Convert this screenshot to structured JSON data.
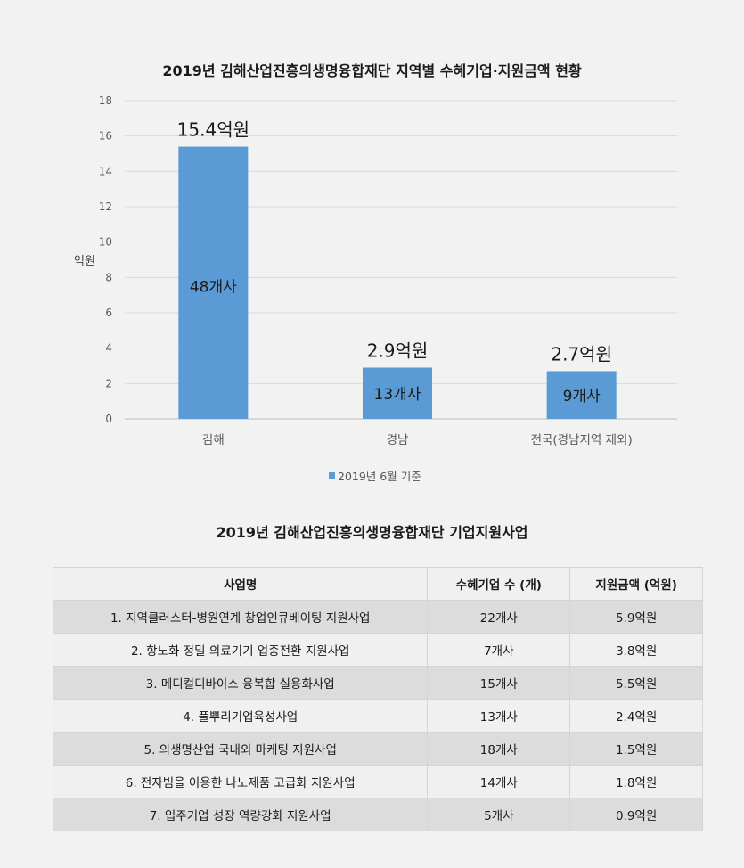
{
  "chart_title": "2019년 김해산업진흥의생명융합재단 지역별 수혜기업·지원금액 현황",
  "chart_data": {
    "type": "bar",
    "categories": [
      "김해",
      "경남",
      "전국(경남지역 제외)"
    ],
    "series": [
      {
        "name": "2019년 6월 기준",
        "values": [
          15.4,
          2.9,
          2.7
        ],
        "value_labels": [
          "15.4억원",
          "2.9억원",
          "2.7억원"
        ],
        "inner_labels": [
          "48개사",
          "13개사",
          "9개사"
        ]
      }
    ],
    "ylabel": "억원",
    "ylim": [
      0,
      18
    ],
    "yticks": [
      0,
      2,
      4,
      6,
      8,
      10,
      12,
      14,
      16,
      18
    ],
    "grid": true,
    "legend_position": "bottom",
    "bar_color": "#5b9bd5"
  },
  "table_title": "2019년 김해산업진흥의생명융합재단 기업지원사업",
  "table": {
    "headers": [
      "사업명",
      "수혜기업 수 (개)",
      "지원금액 (억원)"
    ],
    "rows": [
      [
        "1. 지역클러스터-병원연계 창업인큐베이팅 지원사업",
        "22개사",
        "5.9억원"
      ],
      [
        "2. 항노화 정밀 의료기기 업종전환 지원사업",
        "7개사",
        "3.8억원"
      ],
      [
        "3. 메디컬디바이스 융복합 실용화사업",
        "15개사",
        "5.5억원"
      ],
      [
        "4. 풀뿌리기업육성사업",
        "13개사",
        "2.4억원"
      ],
      [
        "5. 의생명산업 국내외 마케팅 지원사업",
        "18개사",
        "1.5억원"
      ],
      [
        "6. 전자빔을 이용한 나노제품 고급화 지원사업",
        "14개사",
        "1.8억원"
      ],
      [
        "7. 입주기업 성장 역량강화 지원사업",
        "5개사",
        "0.9억원"
      ]
    ]
  }
}
